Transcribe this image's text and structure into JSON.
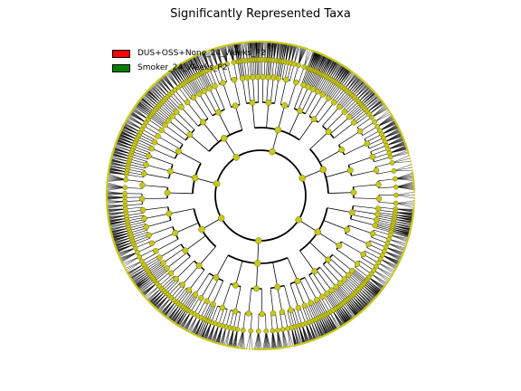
{
  "title": "Significantly Represented Taxa",
  "legend": [
    {
      "label": "DUS+OSS+None_24_Weeks_P2",
      "color": "#ff0000"
    },
    {
      "label": "Smoker_24_Weeks_P2",
      "color": "#008000"
    }
  ],
  "colors": {
    "node": "#c8c81e",
    "node_stroke": "#6b6b00",
    "edge": "#000000",
    "leaf_tip": "#c8c81e"
  },
  "tree": {
    "type": "cladogram",
    "levels": 6
  }
}
